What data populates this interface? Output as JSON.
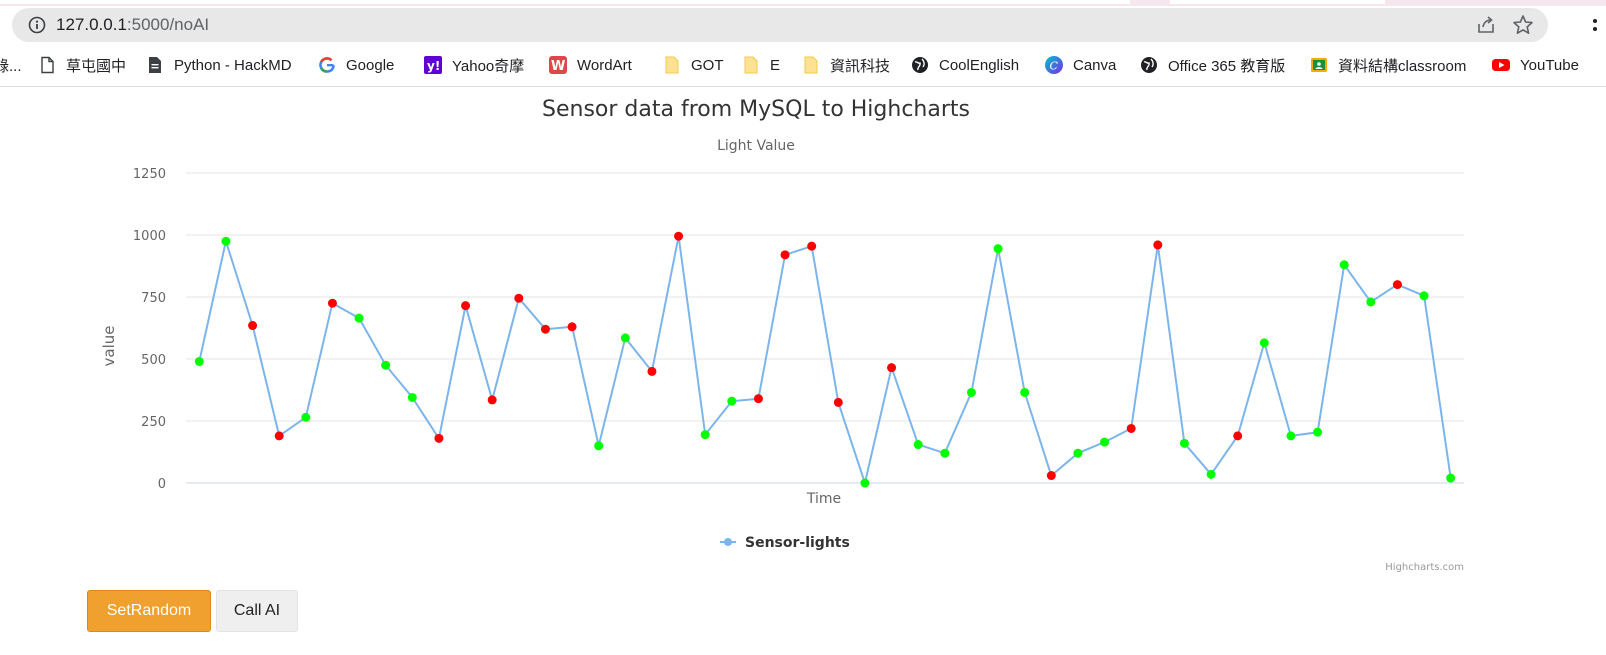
{
  "browser": {
    "url_host": "127.0.0.1",
    "url_path": ":5000/noAI",
    "bookmarks": [
      {
        "label": "錄...",
        "icon": "bookmark-cut-icon"
      },
      {
        "label": "草屯國中",
        "icon": "page-icon"
      },
      {
        "label": "Python - HackMD",
        "icon": "document-icon"
      },
      {
        "label": "Google",
        "icon": "google-icon"
      },
      {
        "label": "Yahoo奇摩",
        "icon": "yahoo-icon"
      },
      {
        "label": "WordArt",
        "icon": "wordart-icon"
      },
      {
        "label": "GOT",
        "icon": "folder-icon"
      },
      {
        "label": "E",
        "icon": "folder-icon"
      },
      {
        "label": "資訊科技",
        "icon": "folder-icon"
      },
      {
        "label": "CoolEnglish",
        "icon": "globe-icon"
      },
      {
        "label": "Canva",
        "icon": "canva-icon"
      },
      {
        "label": "Office 365 教育版",
        "icon": "globe-icon"
      },
      {
        "label": "資料結構classroom",
        "icon": "classroom-icon"
      },
      {
        "label": "YouTube",
        "icon": "youtube-icon"
      }
    ]
  },
  "colors": {
    "line": "#7cb5ec",
    "point_green": "#00ff00",
    "point_red": "#ff0000",
    "button_primary": "#f0a02e"
  },
  "chart_data": {
    "type": "line",
    "title": "Sensor data from MySQL to Highcharts",
    "subtitle": "Light Value",
    "xlabel": "Time",
    "ylabel": "value",
    "ylim": [
      0,
      1250
    ],
    "yticks": [
      "0",
      "250",
      "500",
      "750",
      "1000",
      "1250"
    ],
    "grid": true,
    "legend_position": "bottom-center",
    "credits": "Highcharts.com",
    "series": [
      {
        "name": "Sensor-lights",
        "values": [
          490,
          975,
          635,
          190,
          265,
          725,
          665,
          475,
          345,
          180,
          715,
          335,
          745,
          620,
          630,
          150,
          585,
          450,
          995,
          195,
          330,
          340,
          920,
          955,
          325,
          0,
          465,
          155,
          120,
          365,
          945,
          365,
          30,
          120,
          165,
          220,
          960,
          160,
          35,
          190,
          565,
          190,
          205,
          880,
          730,
          800,
          755,
          20
        ],
        "marker_colors": [
          "g",
          "g",
          "r",
          "r",
          "g",
          "r",
          "g",
          "g",
          "g",
          "r",
          "r",
          "r",
          "r",
          "r",
          "r",
          "g",
          "g",
          "r",
          "r",
          "g",
          "g",
          "r",
          "r",
          "r",
          "r",
          "g",
          "r",
          "g",
          "g",
          "g",
          "g",
          "g",
          "r",
          "g",
          "g",
          "r",
          "r",
          "g",
          "g",
          "r",
          "g",
          "g",
          "g",
          "g",
          "g",
          "r",
          "g",
          "g"
        ]
      }
    ]
  },
  "buttons": {
    "set_random": "SetRandom",
    "call_ai": "Call AI"
  }
}
